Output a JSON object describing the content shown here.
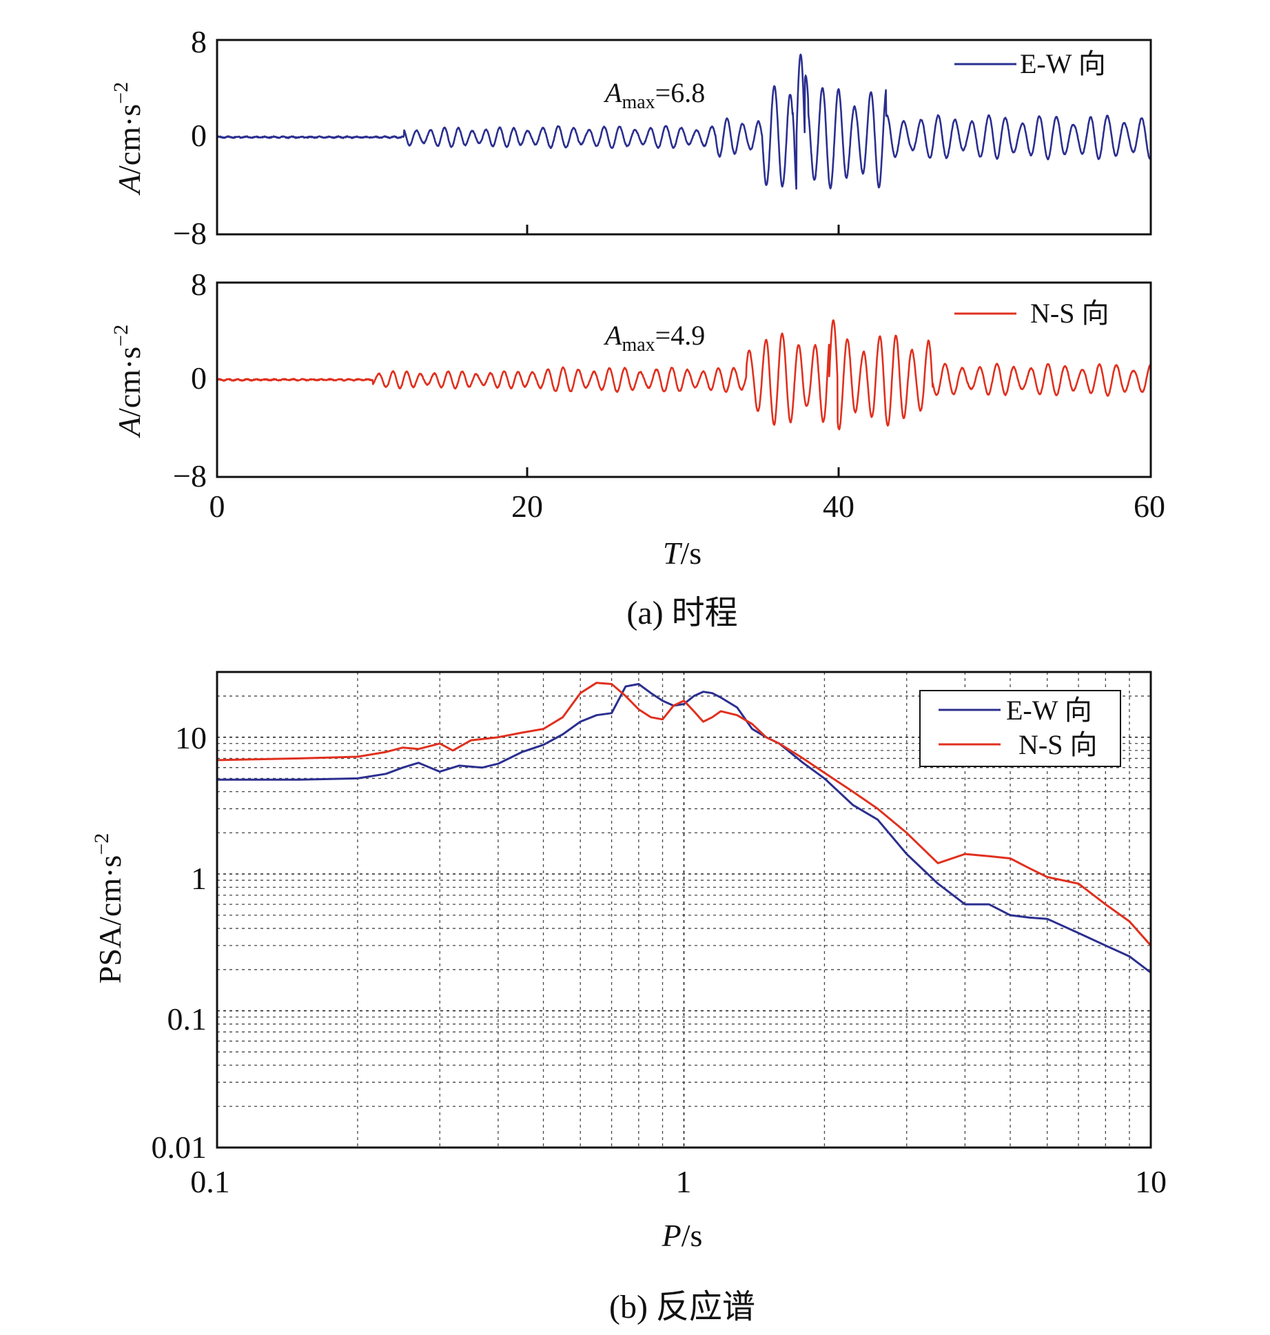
{
  "colors": {
    "ew": "#2b2f8f",
    "ns": "#e0301e"
  },
  "chart_data": [
    {
      "type": "line",
      "id": "ew-history",
      "ylabel": "A/cm·s⁻²",
      "ylabel_italic": "A",
      "ylabel_rest": "/cm·s",
      "ylabel_sup": "−2",
      "xlim": [
        0,
        60
      ],
      "ylim": [
        -8,
        8
      ],
      "yticks": [
        "8",
        "0",
        "−8"
      ],
      "legend": "E-W 向",
      "legend_position": "top-right",
      "annotation": {
        "prefix": "A",
        "sub": "max",
        "suffix": "=6.8"
      },
      "series": [
        {
          "name": "E-W 向",
          "peak": 6.8,
          "peak_time": 37.5,
          "trough": -4.5,
          "segments": [
            {
              "t0": 0,
              "t1": 12,
              "amp": 0.05,
              "period": 0.6
            },
            {
              "t0": 12,
              "t1": 20,
              "amp": 0.8,
              "period": 0.9
            },
            {
              "t0": 20,
              "t1": 32,
              "amp": 0.9,
              "period": 1.0
            },
            {
              "t0": 32,
              "t1": 35,
              "amp": 1.6,
              "period": 1.0
            },
            {
              "t0": 35,
              "t1": 43,
              "amp": 4.2,
              "period": 1.05
            },
            {
              "t0": 43,
              "t1": 60,
              "amp": 1.8,
              "period": 1.1
            }
          ]
        }
      ]
    },
    {
      "type": "line",
      "id": "ns-history",
      "ylabel": "A/cm·s⁻²",
      "ylabel_italic": "A",
      "ylabel_rest": "/cm·s",
      "ylabel_sup": "−2",
      "xlim": [
        0,
        60
      ],
      "ylim": [
        -8,
        8
      ],
      "yticks": [
        "8",
        "0",
        "−8"
      ],
      "xticks": [
        "0",
        "20",
        "40",
        "60"
      ],
      "xlabel_italic": "T",
      "xlabel_rest": "/s",
      "legend": "N-S 向",
      "legend_position": "top-right",
      "annotation": {
        "prefix": "A",
        "sub": "max",
        "suffix": "=4.9"
      },
      "series": [
        {
          "name": "N-S 向",
          "peak": 4.9,
          "peak_time": 39.6,
          "trough": -4.8,
          "segments": [
            {
              "t0": 0,
              "t1": 10,
              "amp": 0.05,
              "period": 0.6
            },
            {
              "t0": 10,
              "t1": 20,
              "amp": 0.7,
              "period": 0.9
            },
            {
              "t0": 20,
              "t1": 34,
              "amp": 1.0,
              "period": 1.0
            },
            {
              "t0": 34,
              "t1": 46,
              "amp": 3.8,
              "period": 1.05
            },
            {
              "t0": 46,
              "t1": 60,
              "amp": 1.3,
              "period": 1.1
            }
          ]
        }
      ]
    },
    {
      "type": "line",
      "id": "response-spectrum",
      "xscale": "log",
      "yscale": "log",
      "xlim": [
        0.1,
        10
      ],
      "ylim": [
        0.01,
        30
      ],
      "xticks": [
        "0.1",
        "1",
        "10"
      ],
      "yticks": [
        "10",
        "1",
        "0.1",
        "0.01"
      ],
      "xlabel_italic": "P",
      "xlabel_rest": "/s",
      "ylabel_rest": "PSA/cm·s",
      "ylabel_sup": "−2",
      "grid": true,
      "legend_position": "top-right",
      "series": [
        {
          "name": "E-W 向",
          "x": [
            0.1,
            0.15,
            0.2,
            0.23,
            0.25,
            0.27,
            0.3,
            0.33,
            0.37,
            0.4,
            0.45,
            0.5,
            0.55,
            0.6,
            0.65,
            0.7,
            0.75,
            0.8,
            0.85,
            0.9,
            0.95,
            1.0,
            1.05,
            1.1,
            1.15,
            1.2,
            1.3,
            1.4,
            1.5,
            1.6,
            1.8,
            2.0,
            2.3,
            2.6,
            3.0,
            3.5,
            4.0,
            4.5,
            5.0,
            5.5,
            6.0,
            7.0,
            8.0,
            9.0,
            10.0
          ],
          "y": [
            4.9,
            4.9,
            5.0,
            5.4,
            6.0,
            6.5,
            5.6,
            6.2,
            6.0,
            6.4,
            7.8,
            8.8,
            10.5,
            13.0,
            14.5,
            15.0,
            23.5,
            24.5,
            21.0,
            18.5,
            17.0,
            17.5,
            20.0,
            21.5,
            21.0,
            19.5,
            16.5,
            11.5,
            10.0,
            9.0,
            6.5,
            5.0,
            3.2,
            2.5,
            1.4,
            0.85,
            0.6,
            0.6,
            0.5,
            0.48,
            0.47,
            0.37,
            0.3,
            0.25,
            0.19
          ]
        },
        {
          "name": "N-S 向",
          "x": [
            0.1,
            0.15,
            0.2,
            0.23,
            0.25,
            0.27,
            0.3,
            0.32,
            0.35,
            0.4,
            0.45,
            0.5,
            0.55,
            0.6,
            0.65,
            0.7,
            0.75,
            0.8,
            0.85,
            0.9,
            0.95,
            1.0,
            1.05,
            1.1,
            1.15,
            1.2,
            1.3,
            1.4,
            1.5,
            1.6,
            1.8,
            2.0,
            2.3,
            2.6,
            3.0,
            3.5,
            4.0,
            4.5,
            5.0,
            5.5,
            6.0,
            7.0,
            8.0,
            9.0,
            10.0
          ],
          "y": [
            6.8,
            7.0,
            7.2,
            7.8,
            8.4,
            8.2,
            9.0,
            8.0,
            9.5,
            10.0,
            10.8,
            11.5,
            14.0,
            21.0,
            25.0,
            24.5,
            20.0,
            16.0,
            14.0,
            13.5,
            17.0,
            18.5,
            15.5,
            13.0,
            14.0,
            15.5,
            14.5,
            12.5,
            10.0,
            9.0,
            7.0,
            5.5,
            4.0,
            3.0,
            2.0,
            1.2,
            1.4,
            1.35,
            1.3,
            1.1,
            0.95,
            0.85,
            0.6,
            0.45,
            0.3
          ]
        }
      ]
    }
  ],
  "captions": {
    "a": "(a) 时程",
    "b": "(b) 反应谱"
  }
}
